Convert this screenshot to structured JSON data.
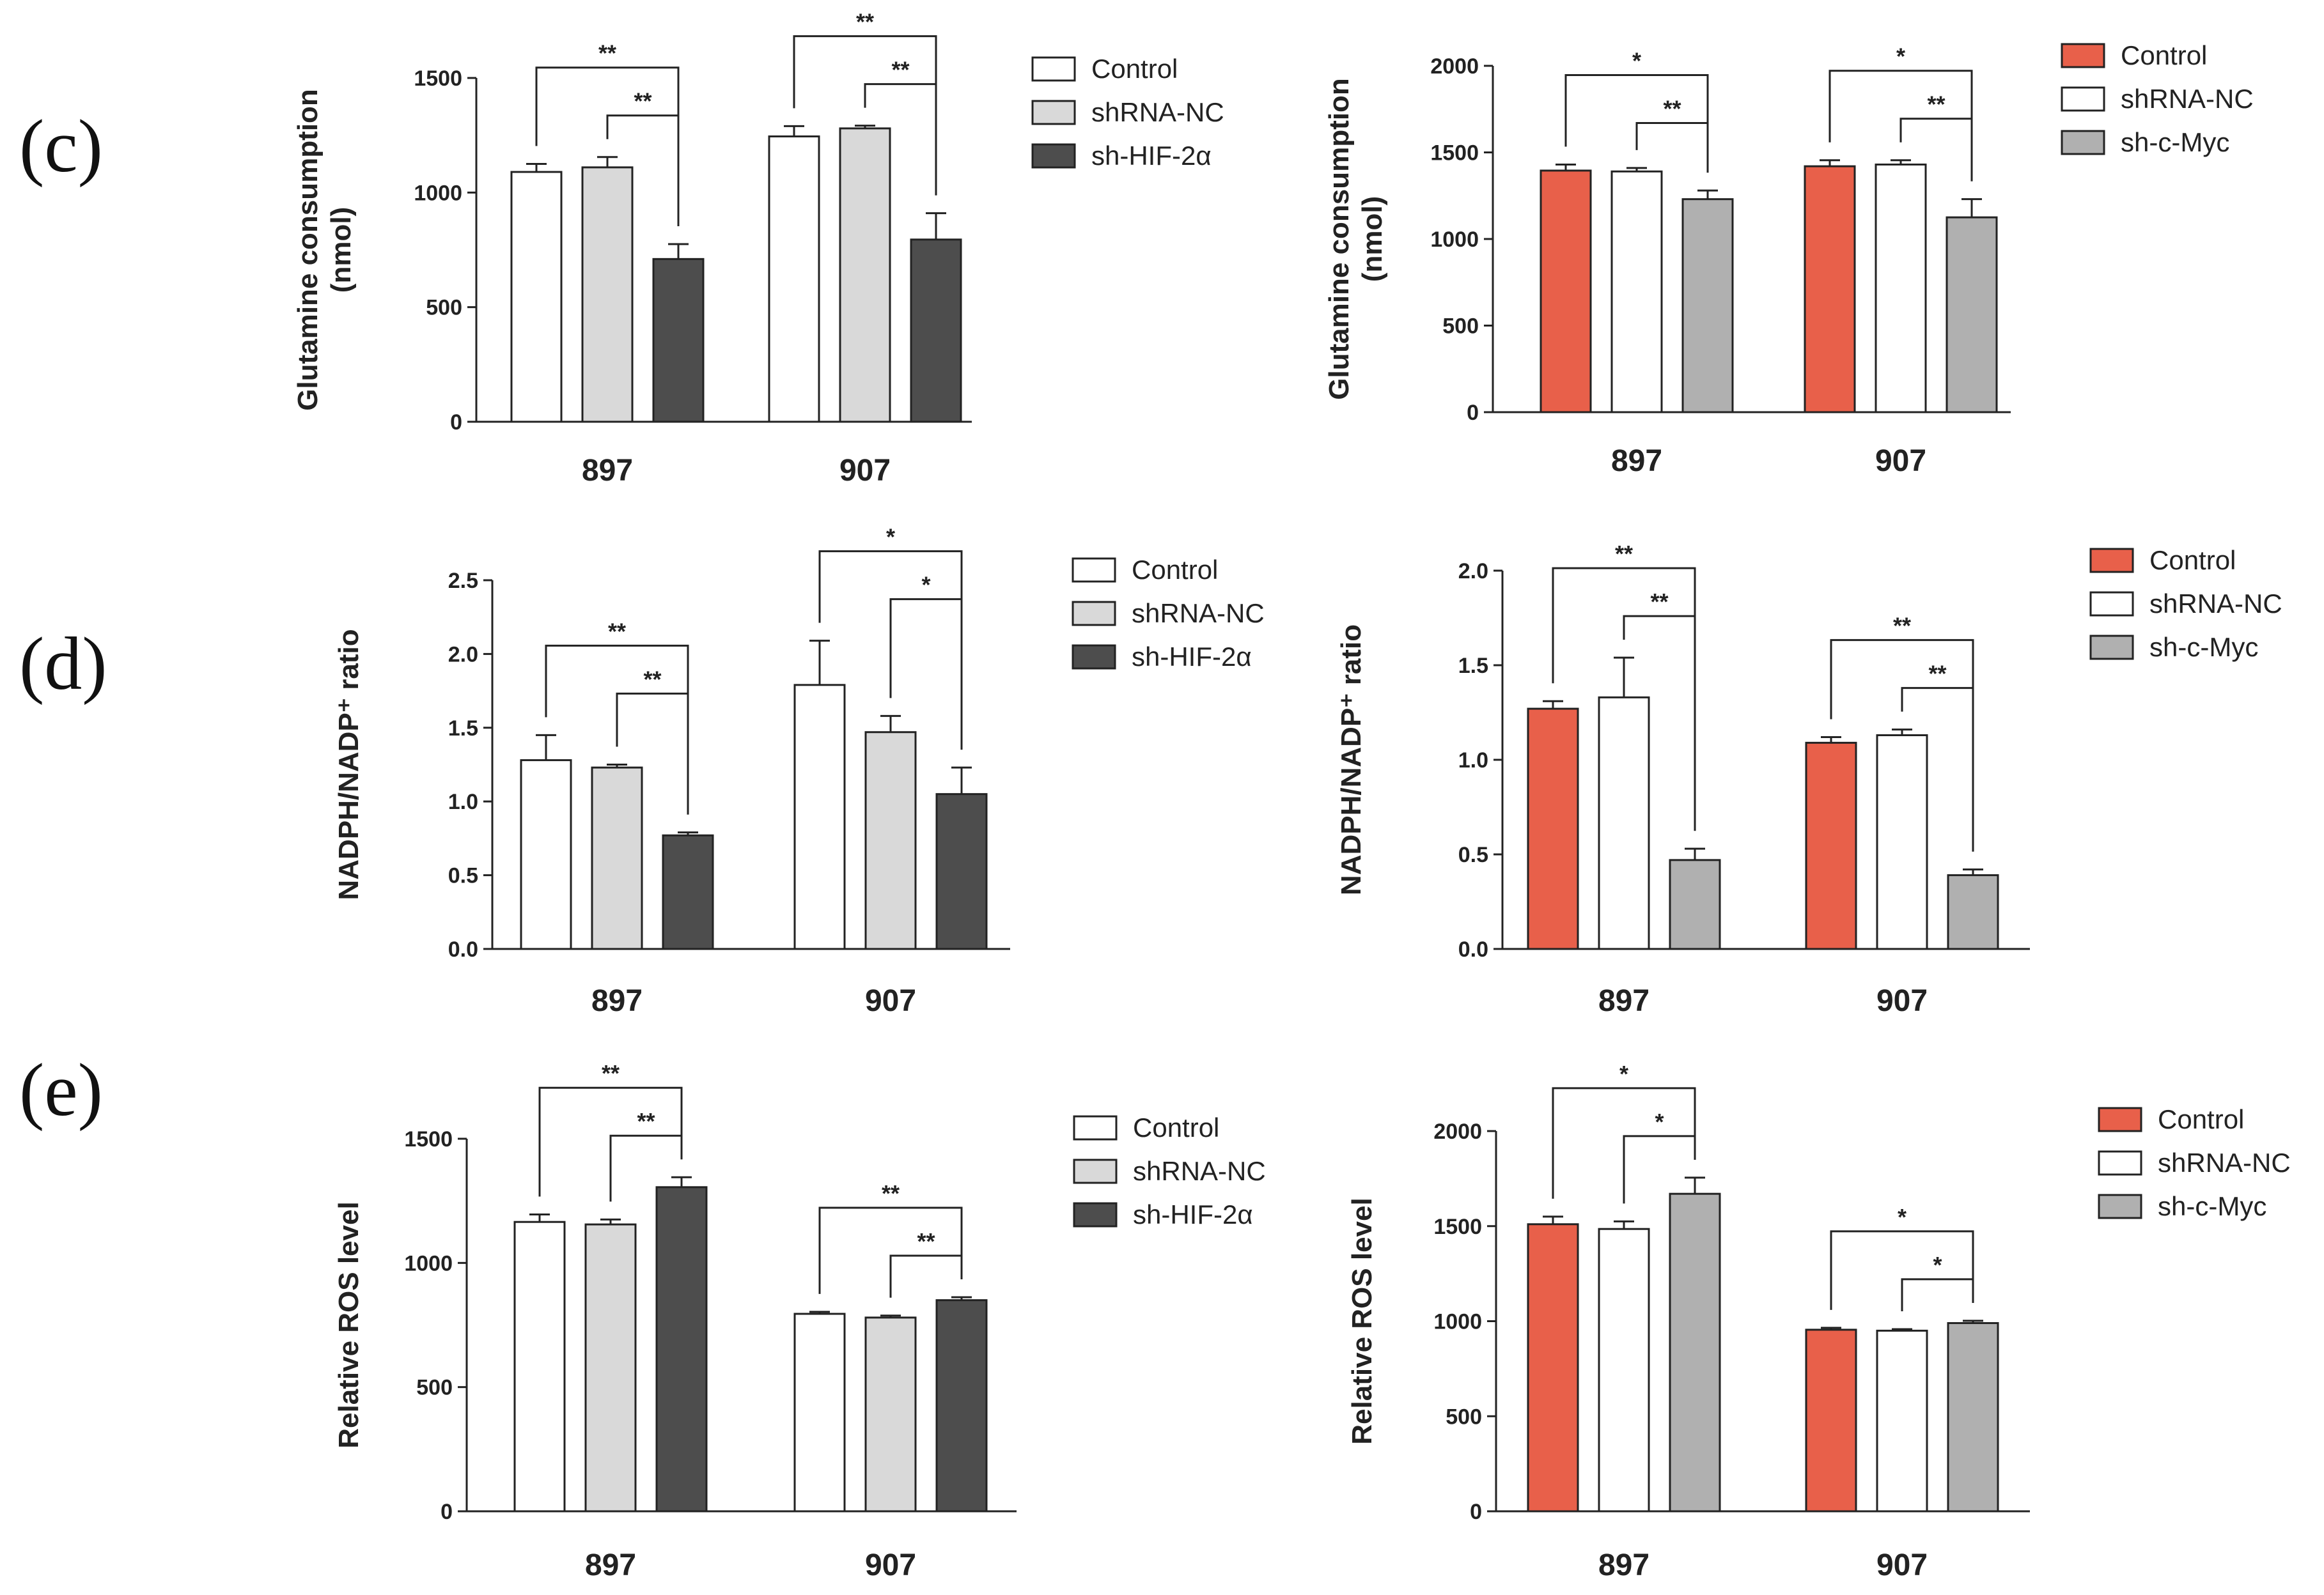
{
  "panel_labels": [
    "(c)",
    "(d)",
    "(e)"
  ],
  "colors": {
    "white": "#ffffff",
    "light_gray": "#d9d9d9",
    "dark_gray": "#4d4d4d",
    "red": "#e8604a",
    "mid_gray": "#b0b0b0",
    "axis": "#222222"
  },
  "chart_data": [
    {
      "id": "c-left",
      "panel": "(c)",
      "type": "bar",
      "ylabel": [
        "Glutamine consumption",
        "(nmol)"
      ],
      "ylim": [
        0,
        1500
      ],
      "yticks": [
        0,
        500,
        1000,
        1500
      ],
      "ytick_labels": [
        "0",
        "500",
        "1000",
        "1500"
      ],
      "categories": [
        "897",
        "907"
      ],
      "series": [
        {
          "name": "Control",
          "color": "#ffffff",
          "values": [
            1090,
            1245
          ],
          "errors": [
            35,
            45
          ]
        },
        {
          "name": "shRNA-NC",
          "color": "#d9d9d9",
          "values": [
            1110,
            1280
          ],
          "errors": [
            45,
            12
          ]
        },
        {
          "name": "sh-HIF-2α",
          "color": "#4d4d4d",
          "values": [
            710,
            795
          ],
          "errors": [
            65,
            115
          ]
        }
      ],
      "significance": [
        {
          "group": "897",
          "from": 0,
          "to": 2,
          "label": "**",
          "level": 1
        },
        {
          "group": "897",
          "from": 1,
          "to": 2,
          "label": "**",
          "level": 0
        },
        {
          "group": "907",
          "from": 0,
          "to": 2,
          "label": "**",
          "level": 1
        },
        {
          "group": "907",
          "from": 1,
          "to": 2,
          "label": "**",
          "level": 0
        }
      ]
    },
    {
      "id": "c-right",
      "panel": "(c)",
      "type": "bar",
      "ylabel": [
        "Glutamine consumption",
        "(nmol)"
      ],
      "ylim": [
        0,
        2000
      ],
      "yticks": [
        0,
        500,
        1000,
        1500,
        2000
      ],
      "ytick_labels": [
        "0",
        "500",
        "1000",
        "1500",
        "2000"
      ],
      "categories": [
        "897",
        "907"
      ],
      "series": [
        {
          "name": "Control",
          "color": "#e8604a",
          "values": [
            1395,
            1420
          ],
          "errors": [
            35,
            35
          ]
        },
        {
          "name": "shRNA-NC",
          "color": "#ffffff",
          "values": [
            1390,
            1430
          ],
          "errors": [
            20,
            25
          ]
        },
        {
          "name": "sh-c-Myc",
          "color": "#b0b0b0",
          "values": [
            1230,
            1125
          ],
          "errors": [
            50,
            105
          ]
        }
      ],
      "significance": [
        {
          "group": "897",
          "from": 0,
          "to": 2,
          "label": "*",
          "level": 1
        },
        {
          "group": "897",
          "from": 1,
          "to": 2,
          "label": "**",
          "level": 0
        },
        {
          "group": "907",
          "from": 0,
          "to": 2,
          "label": "*",
          "level": 1
        },
        {
          "group": "907",
          "from": 1,
          "to": 2,
          "label": "**",
          "level": 0
        }
      ]
    },
    {
      "id": "d-left",
      "panel": "(d)",
      "type": "bar",
      "ylabel": [
        "NADPH/NADP⁺ ratio"
      ],
      "ylim": [
        0,
        2.5
      ],
      "yticks": [
        0,
        0.5,
        1.0,
        1.5,
        2.0,
        2.5
      ],
      "ytick_labels": [
        "0.0",
        "0.5",
        "1.0",
        "1.5",
        "2.0",
        "2.5"
      ],
      "categories": [
        "897",
        "907"
      ],
      "series": [
        {
          "name": "Control",
          "color": "#ffffff",
          "values": [
            1.28,
            1.79
          ],
          "errors": [
            0.17,
            0.3
          ]
        },
        {
          "name": "shRNA-NC",
          "color": "#d9d9d9",
          "values": [
            1.23,
            1.47
          ],
          "errors": [
            0.02,
            0.11
          ]
        },
        {
          "name": "sh-HIF-2α",
          "color": "#4d4d4d",
          "values": [
            0.77,
            1.05
          ],
          "errors": [
            0.02,
            0.18
          ]
        }
      ],
      "significance": [
        {
          "group": "897",
          "from": 0,
          "to": 2,
          "label": "**",
          "level": 1
        },
        {
          "group": "897",
          "from": 1,
          "to": 2,
          "label": "**",
          "level": 0
        },
        {
          "group": "907",
          "from": 0,
          "to": 2,
          "label": "*",
          "level": 1
        },
        {
          "group": "907",
          "from": 1,
          "to": 2,
          "label": "*",
          "level": 0
        }
      ]
    },
    {
      "id": "d-right",
      "panel": "(d)",
      "type": "bar",
      "ylabel": [
        "NADPH/NADP⁺ ratio"
      ],
      "ylim": [
        0,
        2.0
      ],
      "yticks": [
        0,
        0.5,
        1.0,
        1.5,
        2.0
      ],
      "ytick_labels": [
        "0.0",
        "0.5",
        "1.0",
        "1.5",
        "2.0"
      ],
      "categories": [
        "897",
        "907"
      ],
      "series": [
        {
          "name": "Control",
          "color": "#e8604a",
          "values": [
            1.27,
            1.09
          ],
          "errors": [
            0.04,
            0.03
          ]
        },
        {
          "name": "shRNA-NC",
          "color": "#ffffff",
          "values": [
            1.33,
            1.13
          ],
          "errors": [
            0.21,
            0.03
          ]
        },
        {
          "name": "sh-c-Myc",
          "color": "#b0b0b0",
          "values": [
            0.47,
            0.39
          ],
          "errors": [
            0.06,
            0.03
          ]
        }
      ],
      "significance": [
        {
          "group": "897",
          "from": 0,
          "to": 2,
          "label": "**",
          "level": 1
        },
        {
          "group": "897",
          "from": 1,
          "to": 2,
          "label": "**",
          "level": 0
        },
        {
          "group": "907",
          "from": 0,
          "to": 2,
          "label": "**",
          "level": 1
        },
        {
          "group": "907",
          "from": 1,
          "to": 2,
          "label": "**",
          "level": 0
        }
      ]
    },
    {
      "id": "e-left",
      "panel": "(e)",
      "type": "bar",
      "ylabel": [
        "Relative ROS level"
      ],
      "ylim": [
        0,
        1500
      ],
      "yticks": [
        0,
        500,
        1000,
        1500
      ],
      "ytick_labels": [
        "0",
        "500",
        "1000",
        "1500"
      ],
      "categories": [
        "897",
        "907"
      ],
      "series": [
        {
          "name": "Control",
          "color": "#ffffff",
          "values": [
            1165,
            795
          ],
          "errors": [
            30,
            8
          ]
        },
        {
          "name": "shRNA-NC",
          "color": "#d9d9d9",
          "values": [
            1155,
            780
          ],
          "errors": [
            20,
            8
          ]
        },
        {
          "name": "sh-HIF-2α",
          "color": "#4d4d4d",
          "values": [
            1305,
            850
          ],
          "errors": [
            40,
            12
          ]
        }
      ],
      "significance": [
        {
          "group": "897",
          "from": 0,
          "to": 2,
          "label": "**",
          "level": 1
        },
        {
          "group": "897",
          "from": 1,
          "to": 2,
          "label": "**",
          "level": 0
        },
        {
          "group": "907",
          "from": 0,
          "to": 2,
          "label": "**",
          "level": 1
        },
        {
          "group": "907",
          "from": 1,
          "to": 2,
          "label": "**",
          "level": 0
        }
      ]
    },
    {
      "id": "e-right",
      "panel": "(e)",
      "type": "bar",
      "ylabel": [
        "Relative ROS level"
      ],
      "ylim": [
        0,
        2000
      ],
      "yticks": [
        0,
        500,
        1000,
        1500,
        2000
      ],
      "ytick_labels": [
        "0",
        "500",
        "1000",
        "1500",
        "2000"
      ],
      "categories": [
        "897",
        "907"
      ],
      "series": [
        {
          "name": "Control",
          "color": "#e8604a",
          "values": [
            1510,
            955
          ],
          "errors": [
            40,
            10
          ]
        },
        {
          "name": "shRNA-NC",
          "color": "#ffffff",
          "values": [
            1485,
            950
          ],
          "errors": [
            40,
            8
          ]
        },
        {
          "name": "sh-c-Myc",
          "color": "#b0b0b0",
          "values": [
            1670,
            990
          ],
          "errors": [
            85,
            12
          ]
        }
      ],
      "significance": [
        {
          "group": "897",
          "from": 0,
          "to": 2,
          "label": "*",
          "level": 1
        },
        {
          "group": "897",
          "from": 1,
          "to": 2,
          "label": "*",
          "level": 0
        },
        {
          "group": "907",
          "from": 0,
          "to": 2,
          "label": "*",
          "level": 1
        },
        {
          "group": "907",
          "from": 1,
          "to": 2,
          "label": "*",
          "level": 0
        }
      ]
    }
  ]
}
